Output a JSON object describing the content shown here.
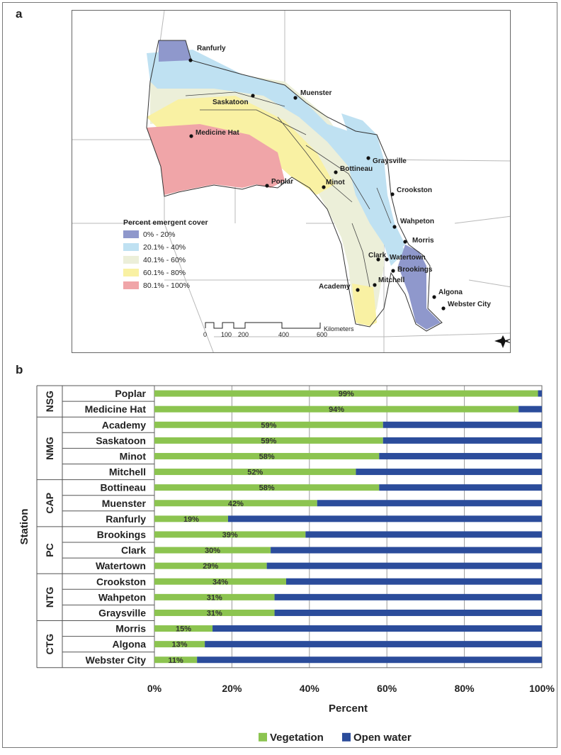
{
  "panel_a_label": "a",
  "panel_b_label": "b",
  "map": {
    "cities": [
      "Ranfurly",
      "Muenster",
      "Saskatoon",
      "Medicine Hat",
      "Graysville",
      "Bottineau",
      "Poplar",
      "Minot",
      "Crookston",
      "Wahpeton",
      "Morris",
      "Clark",
      "Watertown",
      "Brookings",
      "Mitchell",
      "Academy",
      "Algona",
      "Webster City"
    ],
    "legend_title": "Percent emergent cover",
    "legend": [
      {
        "label": "0% - 20%",
        "color": "#8f98cc"
      },
      {
        "label": "20.1% - 40%",
        "color": "#bfe1f2"
      },
      {
        "label": "40.1% - 60%",
        "color": "#ecefd9"
      },
      {
        "label": "60.1% - 80%",
        "color": "#f9f1a3"
      },
      {
        "label": "80.1% - 100%",
        "color": "#f0a5a8"
      }
    ],
    "scale_ticks": [
      "0",
      "100",
      "200",
      "400",
      "600"
    ],
    "scale_unit": "Kilometers"
  },
  "chart_data": {
    "type": "bar",
    "orientation": "horizontal",
    "stacked": true,
    "groups": [
      {
        "name": "NSG",
        "stations": [
          "Poplar",
          "Medicine Hat"
        ]
      },
      {
        "name": "NMG",
        "stations": [
          "Academy",
          "Saskatoon",
          "Minot",
          "Mitchell"
        ]
      },
      {
        "name": "CAP",
        "stations": [
          "Bottineau",
          "Muenster",
          "Ranfurly"
        ]
      },
      {
        "name": "PC",
        "stations": [
          "Brookings",
          "Clark",
          "Watertown"
        ]
      },
      {
        "name": "NTG",
        "stations": [
          "Crookston",
          "Wahpeton",
          "Graysville"
        ]
      },
      {
        "name": "CTG",
        "stations": [
          "Morris",
          "Algona",
          "Webster City"
        ]
      }
    ],
    "categories": [
      "Poplar",
      "Medicine Hat",
      "Academy",
      "Saskatoon",
      "Minot",
      "Mitchell",
      "Bottineau",
      "Muenster",
      "Ranfurly",
      "Brookings",
      "Clark",
      "Watertown",
      "Crookston",
      "Wahpeton",
      "Graysville",
      "Morris",
      "Algona",
      "Webster City"
    ],
    "series": [
      {
        "name": "Vegetation",
        "color": "#8cc450",
        "values": [
          99,
          94,
          59,
          59,
          58,
          52,
          58,
          42,
          19,
          39,
          30,
          29,
          34,
          31,
          31,
          15,
          13,
          11
        ]
      },
      {
        "name": "Open water",
        "color": "#2b4c9b",
        "values": [
          1,
          6,
          41,
          41,
          42,
          48,
          42,
          58,
          81,
          61,
          70,
          71,
          66,
          69,
          69,
          85,
          87,
          89
        ]
      }
    ],
    "data_labels": [
      "99%",
      "94%",
      "59%",
      "59%",
      "58%",
      "52%",
      "58%",
      "42%",
      "19%",
      "39%",
      "30%",
      "29%",
      "34%",
      "31%",
      "31%",
      "15%",
      "13%",
      "11%"
    ],
    "xlabel": "Percent",
    "ylabel": "Station",
    "xlim": [
      0,
      100
    ],
    "x_ticks": [
      "0%",
      "20%",
      "40%",
      "60%",
      "80%",
      "100%"
    ],
    "grid": true,
    "legend_position": "bottom"
  }
}
